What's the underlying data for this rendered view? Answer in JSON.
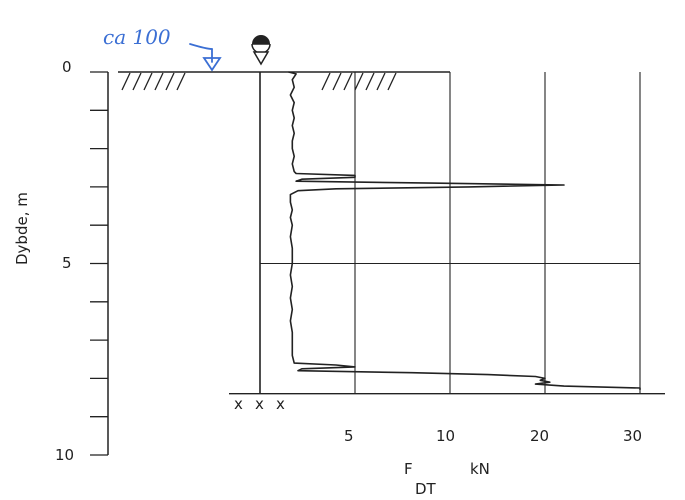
{
  "chart_data": {
    "type": "line",
    "title": "",
    "ylabel": "Dybde, m",
    "xlabel_main": "F",
    "xlabel_sub": "DT",
    "xlabel_unit": "kN",
    "y_axis": {
      "range": [
        0,
        10
      ],
      "inverted": true,
      "ticks": [
        "0",
        "5",
        "10"
      ],
      "minor_step": 1
    },
    "x_axis": {
      "ticks": [
        "5",
        "10",
        "20",
        "30"
      ],
      "tick_values": [
        5,
        10,
        20,
        30
      ]
    },
    "max_depth": 8.4,
    "series": [
      {
        "type": "sounding_profile",
        "points": [
          [
            1.5,
            0
          ],
          [
            1.9,
            0.05
          ],
          [
            1.7,
            0.2
          ],
          [
            1.8,
            0.4
          ],
          [
            1.6,
            0.6
          ],
          [
            1.8,
            0.8
          ],
          [
            1.7,
            1.0
          ],
          [
            1.8,
            1.2
          ],
          [
            1.7,
            1.4
          ],
          [
            1.8,
            1.6
          ],
          [
            1.7,
            1.8
          ],
          [
            1.7,
            2.0
          ],
          [
            1.8,
            2.2
          ],
          [
            1.7,
            2.4
          ],
          [
            1.8,
            2.6
          ],
          [
            1.9,
            2.65
          ],
          [
            5.0,
            2.7
          ],
          [
            5.0,
            2.75
          ],
          [
            2.2,
            2.8
          ],
          [
            1.9,
            2.85
          ],
          [
            9.0,
            2.9
          ],
          [
            22.0,
            2.95
          ],
          [
            12.0,
            3.0
          ],
          [
            4.0,
            3.05
          ],
          [
            2.0,
            3.1
          ],
          [
            1.6,
            3.2
          ],
          [
            1.6,
            3.4
          ],
          [
            1.7,
            3.6
          ],
          [
            1.6,
            3.8
          ],
          [
            1.7,
            4.0
          ],
          [
            1.6,
            4.3
          ],
          [
            1.7,
            4.6
          ],
          [
            1.7,
            5.0
          ],
          [
            1.6,
            5.3
          ],
          [
            1.7,
            5.6
          ],
          [
            1.6,
            5.9
          ],
          [
            1.7,
            6.2
          ],
          [
            1.6,
            6.5
          ],
          [
            1.7,
            6.8
          ],
          [
            1.7,
            7.1
          ],
          [
            1.7,
            7.4
          ],
          [
            1.8,
            7.6
          ],
          [
            4.0,
            7.65
          ],
          [
            5.0,
            7.7
          ],
          [
            2.2,
            7.75
          ],
          [
            2.0,
            7.8
          ],
          [
            8.0,
            7.85
          ],
          [
            14.0,
            7.9
          ],
          [
            19.0,
            7.95
          ],
          [
            20.0,
            8.0
          ],
          [
            19.5,
            8.05
          ],
          [
            20.5,
            8.1
          ],
          [
            19.0,
            8.15
          ],
          [
            22.0,
            8.2
          ],
          [
            30.0,
            8.25
          ],
          [
            30.0,
            8.3
          ]
        ]
      }
    ],
    "annotations": {
      "water_level_text": "ca 100",
      "termination_marks": [
        "x",
        "x",
        "x"
      ]
    },
    "colors": {
      "ink": "#222222",
      "annotation": "#3b6fd4"
    }
  }
}
